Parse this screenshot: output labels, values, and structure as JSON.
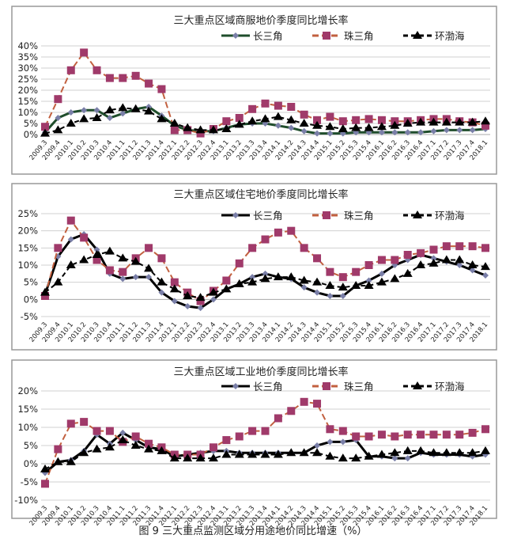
{
  "caption": "图 9  三大重点监测区域分用途地价同比增速（%）",
  "chart_data": [
    {
      "type": "line",
      "title": "三大重点区域商服地价季度同比增长率",
      "ylim": [
        0,
        40
      ],
      "yticks": [
        0,
        5,
        10,
        15,
        20,
        25,
        30,
        35,
        40
      ],
      "grid": true,
      "legend": "top-right",
      "categories": [
        "2009.3",
        "2009.4",
        "2010.1",
        "2010.2",
        "2010.3",
        "2010.4",
        "2011.1",
        "2011.2",
        "2011.3",
        "2011.4",
        "2012.1",
        "2012.2",
        "2012.3",
        "2012.4",
        "2013.1",
        "2013.2",
        "2013.3",
        "2013.4",
        "2014.1",
        "2014.2",
        "2014.3",
        "2014.4",
        "2015.1",
        "2015.2",
        "2015.3",
        "2015.4",
        "2016.1",
        "2016.2",
        "2016.3",
        "2016.4",
        "2017.1",
        "2017.2",
        "2017.3",
        "2017.4",
        "2018.1"
      ],
      "series": [
        {
          "name": "长三角",
          "color": "#1f4d2b",
          "marker": "diamond",
          "dash": "",
          "values": [
            1,
            7.5,
            10,
            11,
            11,
            7.5,
            9.5,
            11.5,
            12.5,
            8.5,
            4,
            2,
            1.5,
            1.5,
            3,
            4.5,
            5,
            5,
            4,
            3,
            1.5,
            0.5,
            0.5,
            0.5,
            1,
            1,
            1,
            1,
            1,
            1,
            1.5,
            2,
            2,
            2,
            2.5
          ]
        },
        {
          "name": "珠三角",
          "color": "#a03a6a",
          "marker": "square",
          "dash": "8 4",
          "values": [
            3.5,
            16,
            29,
            37,
            29,
            25.5,
            25.5,
            26.5,
            23,
            20.5,
            2,
            2,
            0.5,
            2.5,
            6,
            7.5,
            11.5,
            14,
            13,
            12.5,
            9,
            6.5,
            8,
            6,
            6.5,
            7,
            6.5,
            6,
            6,
            6.5,
            7,
            7,
            6,
            5.5,
            4
          ]
        },
        {
          "name": "环渤海",
          "color": "#000000",
          "marker": "triangle",
          "dash": "6 4",
          "values": [
            0.5,
            2,
            5,
            7,
            7.5,
            11,
            12,
            11.5,
            10.5,
            7,
            5,
            3,
            2,
            2,
            2.5,
            4.5,
            6,
            7,
            8,
            6.5,
            5,
            4,
            3.5,
            2.5,
            3,
            3,
            3.5,
            4,
            5,
            5.5,
            5.5,
            5.5,
            5.5,
            5.5,
            6
          ]
        }
      ]
    },
    {
      "type": "line",
      "title": "三大重点区域住宅地价季度同比增长率",
      "ylim": [
        -5,
        25
      ],
      "yticks": [
        -5,
        0,
        5,
        10,
        15,
        20,
        25
      ],
      "grid": true,
      "legend": "top-right",
      "categories": [
        "2009.3",
        "2009.4",
        "2010.1",
        "2010.2",
        "2010.3",
        "2010.4",
        "2011.1",
        "2011.2",
        "2011.3",
        "2011.4",
        "2012.1",
        "2012.2",
        "2012.3",
        "2012.4",
        "2013.1",
        "2013.2",
        "2013.3",
        "2013.4",
        "2014.1",
        "2014.2",
        "2014.3",
        "2014.4",
        "2015.1",
        "2015.2",
        "2015.3",
        "2015.4",
        "2016.1",
        "2016.2",
        "2016.3",
        "2016.4",
        "2017.1",
        "2017.2",
        "2017.3",
        "2017.4",
        "2018.1"
      ],
      "series": [
        {
          "name": "长三角",
          "color": "#000000",
          "marker": "diamond",
          "dash": "",
          "values": [
            1.5,
            12.5,
            17.5,
            19,
            14.5,
            7.5,
            6,
            6.5,
            6.5,
            2,
            -0.5,
            -2,
            -2.5,
            0,
            3,
            4.5,
            6.5,
            7.5,
            6.5,
            6,
            3.5,
            2,
            1,
            1,
            4,
            5.5,
            7.5,
            10,
            11.5,
            13,
            12,
            11,
            10,
            8.5,
            7
          ]
        },
        {
          "name": "珠三角",
          "color": "#a03a6a",
          "marker": "square",
          "dash": "8 4",
          "values": [
            1,
            15,
            23,
            18,
            11.5,
            8.5,
            8,
            12,
            15,
            12,
            5,
            2,
            -0.5,
            2.5,
            5.5,
            10.5,
            15,
            17.5,
            19.5,
            20,
            15,
            12,
            8,
            6.5,
            8,
            10,
            11.5,
            11.5,
            13,
            13.5,
            14.5,
            15.5,
            15.5,
            15.5,
            15
          ]
        },
        {
          "name": "环渤海",
          "color": "#000000",
          "marker": "triangle",
          "dash": "6 4",
          "values": [
            2,
            5,
            10,
            11.5,
            13,
            14,
            12,
            11,
            9,
            5,
            3,
            1,
            0.5,
            2,
            3,
            4.5,
            5,
            6,
            6.5,
            6.5,
            5.5,
            5,
            4,
            3.5,
            4,
            4,
            5,
            6,
            7.5,
            10,
            10.5,
            11.5,
            11.5,
            10,
            9.5
          ]
        }
      ]
    },
    {
      "type": "line",
      "title": "三大重点区域工业地价季度同比增长率",
      "ylim": [
        -10,
        20
      ],
      "yticks": [
        -10,
        -5,
        0,
        5,
        10,
        15,
        20
      ],
      "grid": true,
      "legend": "top-right",
      "categories": [
        "2009.3",
        "2009.4",
        "2010.1",
        "2010.2",
        "2010.3",
        "2010.4",
        "2011.1",
        "2011.2",
        "2011.3",
        "2011.4",
        "2012.1",
        "2012.2",
        "2012.3",
        "2012.4",
        "2013.1",
        "2013.2",
        "2013.3",
        "2013.4",
        "2014.1",
        "2014.2",
        "2014.3",
        "2014.4",
        "2015.1",
        "2015.2",
        "2015.3",
        "2015.4",
        "2016.1",
        "2016.2",
        "2016.3",
        "2016.4",
        "2017.1",
        "2017.2",
        "2017.3",
        "2017.4",
        "2018.1"
      ],
      "series": [
        {
          "name": "长三角",
          "color": "#000000",
          "marker": "diamond",
          "dash": "",
          "values": [
            -2.5,
            0.5,
            1,
            3.5,
            8,
            5.5,
            8.5,
            6.5,
            4.5,
            4,
            2,
            2.5,
            3,
            3.5,
            3.5,
            3,
            3,
            3,
            3,
            3,
            3,
            5,
            6,
            6,
            6.5,
            2,
            2,
            1.5,
            1.5,
            3,
            2.5,
            2.5,
            2.5,
            2,
            2.5
          ]
        },
        {
          "name": "珠三角",
          "color": "#a03a6a",
          "marker": "square",
          "dash": "8 4",
          "values": [
            -5.5,
            4,
            11,
            11.5,
            9,
            9,
            6,
            7.5,
            5.5,
            4.5,
            2.5,
            2.5,
            2.5,
            4.5,
            6.5,
            7.5,
            9,
            9,
            12.5,
            14.5,
            17,
            16.5,
            9.5,
            9,
            7.5,
            7.5,
            8,
            7.5,
            8,
            8,
            8,
            8,
            8,
            8.5,
            9.5
          ]
        },
        {
          "name": "环渤海",
          "color": "#000000",
          "marker": "triangle",
          "dash": "6 4",
          "values": [
            -1.5,
            0.5,
            0.5,
            3,
            4,
            4.5,
            6.5,
            5,
            4,
            3.5,
            1.5,
            1.5,
            1.5,
            1.5,
            2.5,
            2.5,
            2.5,
            2.5,
            2.5,
            3,
            3,
            3,
            2,
            1.5,
            1.5,
            2,
            2.5,
            3,
            3.5,
            3.5,
            3,
            3,
            3,
            3,
            3.5
          ]
        }
      ]
    }
  ]
}
